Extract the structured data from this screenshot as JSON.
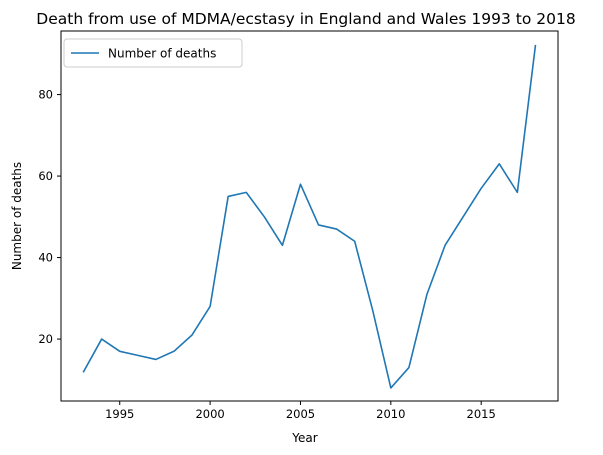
{
  "chart_data": {
    "type": "line",
    "title": "Death from use of MDMA/ecstasy in England and Wales 1993 to 2018",
    "xlabel": "Year",
    "ylabel": "Number of deaths",
    "xlim": [
      1991.75,
      2019.25
    ],
    "ylim": [
      4.8,
      95.6
    ],
    "xticks": [
      1995,
      2000,
      2005,
      2010,
      2015
    ],
    "yticks": [
      20,
      40,
      60,
      80
    ],
    "grid": false,
    "legend_position": "upper-left",
    "series": [
      {
        "name": "Number of deaths",
        "color": "#1f77b4",
        "x": [
          1993,
          1994,
          1995,
          1996,
          1997,
          1998,
          1999,
          2000,
          2001,
          2002,
          2003,
          2004,
          2005,
          2006,
          2007,
          2008,
          2009,
          2010,
          2011,
          2012,
          2013,
          2014,
          2015,
          2016,
          2017,
          2018
        ],
        "y": [
          12,
          20,
          17,
          16,
          15,
          17,
          21,
          28,
          55,
          56,
          50,
          43,
          58,
          48,
          47,
          44,
          27,
          8,
          13,
          31,
          43,
          50,
          57,
          63,
          56,
          92
        ]
      }
    ]
  }
}
